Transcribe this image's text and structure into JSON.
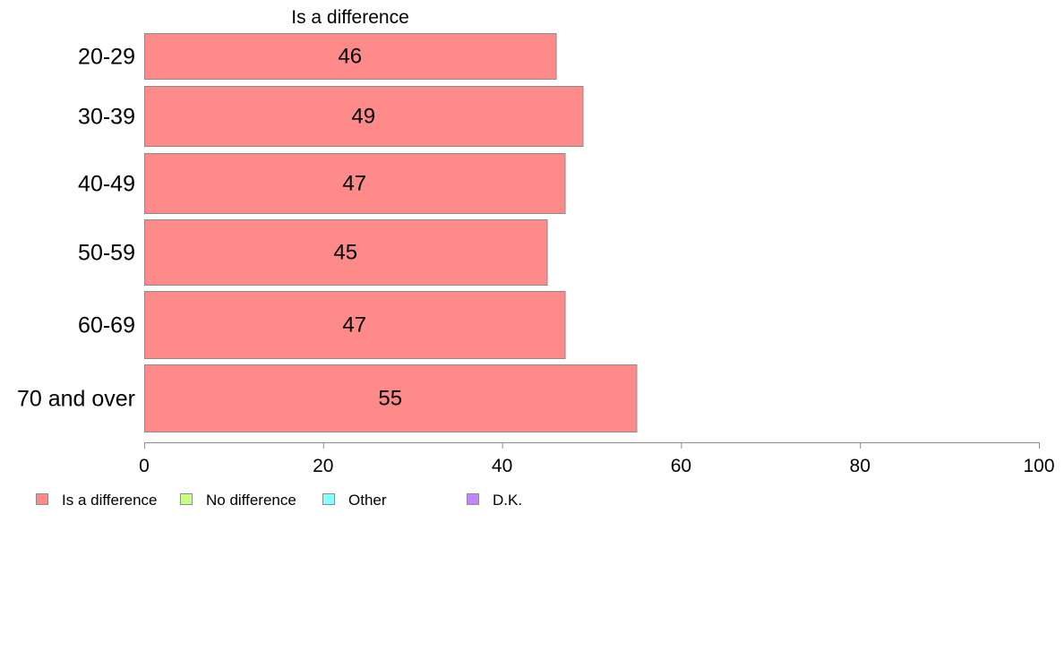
{
  "chart_data": {
    "type": "bar",
    "orientation": "horizontal",
    "title": "Is a difference",
    "categories": [
      "20-29",
      "30-39",
      "40-49",
      "50-59",
      "60-69",
      "70 and over"
    ],
    "series": [
      {
        "name": "Is a difference",
        "color": "#ff8a8a",
        "values": [
          46,
          49,
          47,
          45,
          47,
          55
        ],
        "labels": [
          "46",
          "49",
          "47",
          "45",
          "47",
          "55"
        ]
      }
    ],
    "xlim": [
      0,
      100
    ],
    "xticks": [
      "0",
      "20",
      "40",
      "60",
      "80",
      "100"
    ],
    "grid": false,
    "legend_position": "bottom-left",
    "legend": [
      {
        "label": "Is a difference",
        "color": "#ff8a8a"
      },
      {
        "label": "No difference",
        "color": "#ccff88"
      },
      {
        "label": "Other",
        "color": "#88ffff"
      },
      {
        "label": "D.K.",
        "color": "#bb88ff"
      }
    ]
  }
}
